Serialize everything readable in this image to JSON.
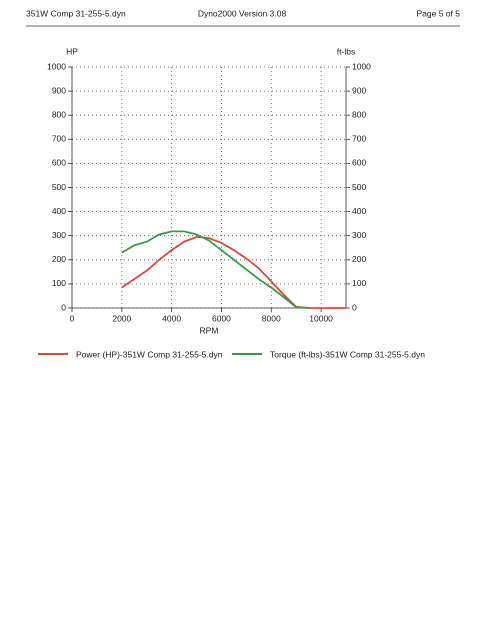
{
  "header": {
    "left": "351W Comp 31-255-5.dyn",
    "center": "Dyno2000  Version 3.08",
    "right": "Page 5 of 5"
  },
  "chart_data": {
    "type": "line",
    "y_label": "HP",
    "y2_label": "ft-lbs",
    "x_label": "RPM",
    "x": [
      2000,
      2500,
      3000,
      3500,
      4000,
      4500,
      5000,
      5500,
      6000,
      6500,
      7000,
      7500,
      8000,
      8500,
      9000,
      9500,
      10000,
      11000
    ],
    "series": [
      {
        "name": "Power (HP)-351W Comp 31-255-5.dyn",
        "color": "#e0483a",
        "values": [
          85,
          120,
          155,
          200,
          240,
          275,
          295,
          290,
          270,
          240,
          205,
          165,
          110,
          55,
          5,
          0,
          0,
          0
        ]
      },
      {
        "name": "Torque (ft-lbs)-351W Comp 31-255-5.dyn",
        "color": "#3a9a4a",
        "axis": "y2",
        "values": [
          230,
          260,
          275,
          305,
          318,
          318,
          305,
          280,
          240,
          200,
          160,
          120,
          85,
          45,
          3,
          0,
          null,
          null
        ]
      }
    ],
    "xlim": [
      0,
      11000
    ],
    "xticks": [
      0,
      2000,
      4000,
      6000,
      8000,
      10000
    ],
    "ylim": [
      0,
      1000
    ],
    "yticks": [
      0,
      100,
      200,
      300,
      400,
      500,
      600,
      700,
      800,
      900,
      1000
    ],
    "y2lim": [
      0,
      1000
    ],
    "y2ticks": [
      0,
      100,
      200,
      300,
      400,
      500,
      600,
      700,
      800,
      900,
      1000
    ],
    "grid": true
  }
}
